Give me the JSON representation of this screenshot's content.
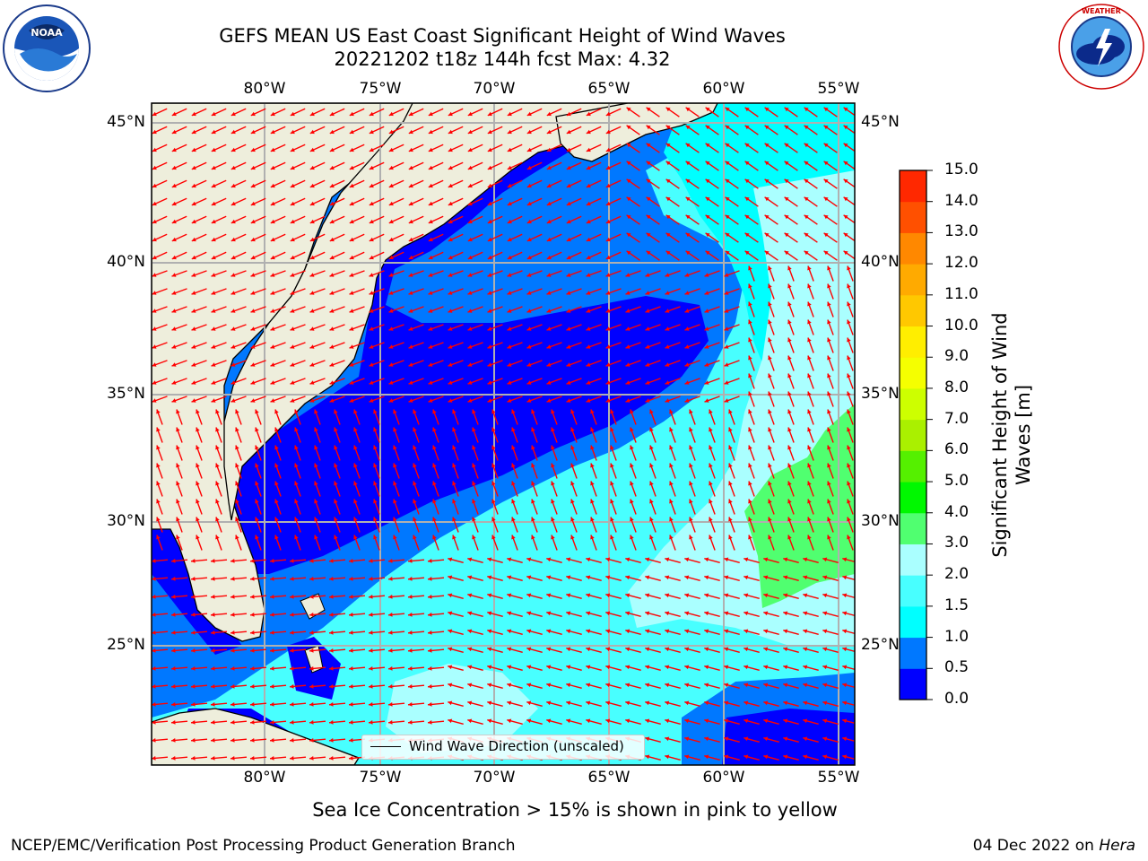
{
  "header": {
    "title_line1": "GEFS MEAN US East Coast Significant Height of Wind Waves",
    "title_line2": "20221202 t18z 144h fcst   Max: 4.32"
  },
  "logos": {
    "left": {
      "name": "NOAA",
      "ring_text": "NATIONAL OCEANIC AND ATMOSPHERIC ADMINISTRATION · U.S. DEPARTMENT OF COMMERCE"
    },
    "right": {
      "name": "NATIONAL WEATHER SERVICE"
    }
  },
  "map": {
    "land_color": "#eeeedc",
    "grid_color": "#b0b0b0",
    "arrow_color": "#ff0000",
    "lon_labels": [
      "80°W",
      "75°W",
      "70°W",
      "65°W",
      "60°W",
      "55°W"
    ],
    "lat_labels": [
      "45°N",
      "40°N",
      "35°N",
      "30°N",
      "25°N"
    ],
    "legend_label": "Wind Wave Direction (unscaled)"
  },
  "colorbar": {
    "title_line1": "Significant Height of Wind",
    "title_line2": "Waves [m]",
    "ticks": [
      "15.0",
      "14.0",
      "13.0",
      "12.0",
      "11.0",
      "10.0",
      "9.0",
      "8.0",
      "7.0",
      "6.0",
      "5.0",
      "4.0",
      "3.0",
      "2.0",
      "1.5",
      "1.0",
      "0.5",
      "0.0"
    ],
    "colors_bottom_to_top": [
      "#0000ff",
      "#0078ff",
      "#00ffff",
      "#48ffff",
      "#aaffff",
      "#50ff70",
      "#00f800",
      "#55f000",
      "#aaf000",
      "#cdff00",
      "#f5ff00",
      "#ffee00",
      "#ffc800",
      "#ffaa00",
      "#ff8800",
      "#ff5000",
      "#ff2800"
    ]
  },
  "footer": {
    "ice_note": "Sea Ice Concentration > 15% is shown in pink to yellow",
    "left": "NCEP/EMC/Verification Post Processing Product Generation Branch",
    "right_date": "04 Dec 2022 on ",
    "right_machine": "Hera"
  }
}
